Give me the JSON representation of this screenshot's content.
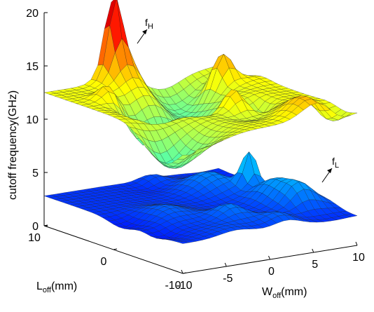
{
  "chart_data": {
    "type": "surface",
    "title": "",
    "zlabel": "cutoff frequency(GHz)",
    "xlabel_main": "W",
    "xlabel_sub": "off",
    "xlabel_unit": "(mm)",
    "ylabel_main": "L",
    "ylabel_sub": "off",
    "ylabel_unit": "(mm)",
    "zlim": [
      0,
      20
    ],
    "z_ticks": [
      "0",
      "5",
      "10",
      "15",
      "20"
    ],
    "x_ticks": [
      "-10",
      "-5",
      "0",
      "5",
      "10"
    ],
    "y_ticks": [
      "10",
      "0",
      "-10"
    ],
    "series": [
      {
        "name": "f_H",
        "label_main": "f",
        "label_sub": "H",
        "approx_mean": 12.5,
        "approx_range": [
          5.5,
          18.5
        ]
      },
      {
        "name": "f_L",
        "label_main": "f",
        "label_sub": "L",
        "approx_mean": 2.8,
        "approx_range": [
          0.5,
          7.8
        ]
      }
    ],
    "grid": true,
    "colormap": "jet"
  }
}
